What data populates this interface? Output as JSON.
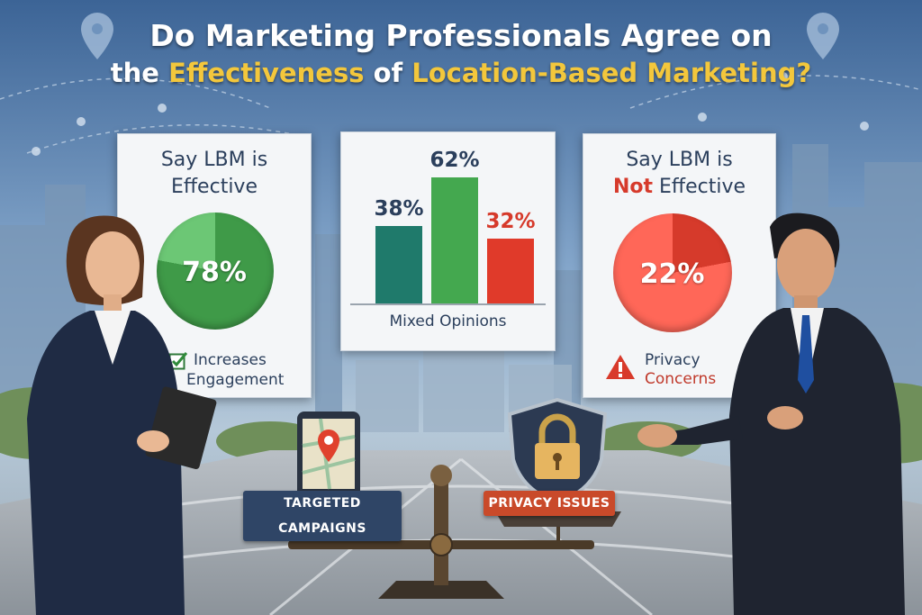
{
  "title": {
    "line1": "Do Marketing Professionals Agree on",
    "line2_prefix": "the",
    "line2_highlight1": "Effectiveness",
    "line2_mid": "of",
    "line2_highlight2": "Location-Based Marketing?"
  },
  "effective_card": {
    "title_line1": "Say LBM is",
    "title_line2": "Effective",
    "percent": "78%",
    "percent_value": 78,
    "note_line1": "Increases",
    "note_line2": "Engagement",
    "color": "#3f9a48",
    "icon": "checkbox-check-icon"
  },
  "mixed_card": {
    "label": "Mixed Opinions"
  },
  "not_effective_card": {
    "title_line1": "Say LBM is",
    "title_emphasis": "Not",
    "title_rest": "Effective",
    "percent": "22%",
    "percent_value": 22,
    "note_line1": "Privacy",
    "note_line2": "Concerns",
    "color": "#d63a2b",
    "icon": "warning-icon"
  },
  "scale": {
    "left_sign": "TARGETED CAMPAIGNS",
    "right_sign": "PRIVACY ISSUES",
    "left_icon": "map-pin-phone-icon",
    "right_icon": "padlock-shield-icon"
  },
  "chart_data": {
    "type": "bar",
    "categories": [
      "",
      "",
      ""
    ],
    "values": [
      38,
      62,
      32
    ],
    "value_labels": [
      "38%",
      "62%",
      "32%"
    ],
    "colors": [
      "#1f7a6b",
      "#44a84f",
      "#e03a2a"
    ],
    "title": "",
    "xlabel": "Mixed Opinions",
    "ylabel": "",
    "ylim": [
      0,
      62
    ]
  }
}
